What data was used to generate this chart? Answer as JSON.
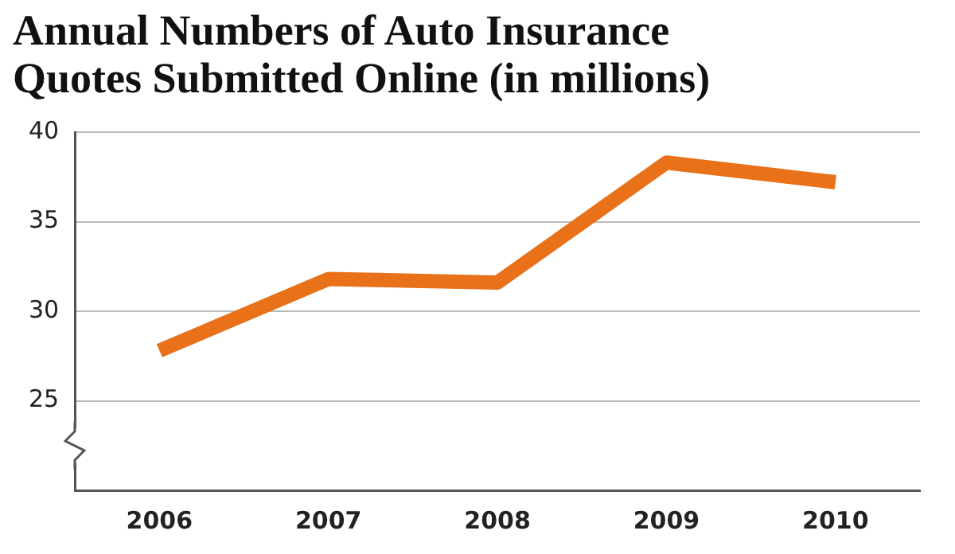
{
  "chart_data": {
    "type": "line",
    "title": "Annual Numbers of Auto Insurance\nQuotes Submitted Online (in millions)",
    "categories": [
      "2006",
      "2007",
      "2008",
      "2009",
      "2010"
    ],
    "series": [
      {
        "color": "#e8711a",
        "values": [
          27.8,
          31.8,
          31.6,
          38.3,
          37.2
        ]
      }
    ],
    "ylim": [
      20,
      40
    ],
    "yticks": [
      25,
      30,
      35,
      40
    ],
    "grid": "y",
    "marker": "none",
    "line_style": "solid",
    "legend": false
  }
}
